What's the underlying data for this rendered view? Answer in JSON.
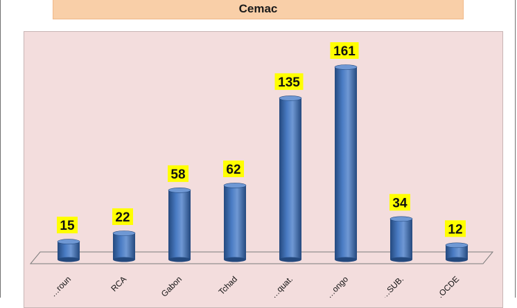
{
  "header": {
    "title": "Cemac"
  },
  "colors": {
    "bar_front": "#4a7cc4",
    "bar_dark": "#24497e",
    "bar_top": "#6f98d4",
    "label_bg": "#ffff00",
    "plot_bg": "#f3dddd",
    "title_bg": "#f9cfa8"
  },
  "chart_data": {
    "type": "bar",
    "style": "3d-cylinder",
    "title": "Cemac",
    "categories": [
      "Cameroun",
      "RCA",
      "Gabon",
      "Tchad",
      "G. Equat.",
      "Congo",
      "Af. SUB.",
      "OCDE"
    ],
    "category_labels_visible": [
      "…roun",
      "RCA",
      "Gabon",
      "Tchad",
      "…quat.",
      "…ongo",
      "…SUB.",
      "…OCDE"
    ],
    "values": [
      15,
      22,
      58,
      62,
      135,
      161,
      34,
      12
    ],
    "ylim": [
      0,
      170
    ],
    "grid": false,
    "legend": "none",
    "data_labels": true
  }
}
